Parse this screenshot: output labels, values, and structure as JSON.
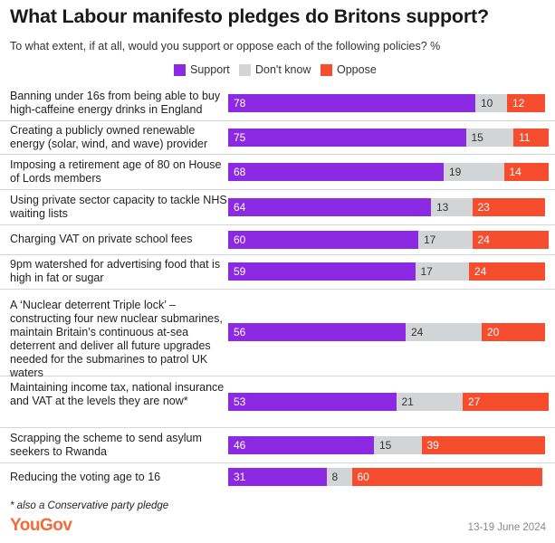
{
  "title": "What Labour manifesto pledges do Britons support?",
  "subtitle": "To what extent, if at all, would you support or oppose each of the following policies? %",
  "footnote": "* also a Conservative party pledge",
  "brand": "YouGov",
  "date": "13-19 June 2024",
  "colors": {
    "support": "#8b29e3",
    "dont_know": "#d3d4d6",
    "oppose": "#f54d2e"
  },
  "chart_data": {
    "type": "bar",
    "orientation": "horizontal",
    "stacked": true,
    "title": "What Labour manifesto pledges do Britons support?",
    "subtitle": "To what extent, if at all, would you support or oppose each of the following policies? %",
    "legend_position": "top-center",
    "categories": [
      "Banning under 16s from being able to buy high-caffeine energy drinks in England",
      "Creating a publicly owned renewable energy (solar, wind, and wave) provider",
      "Imposing a retirement age of 80 on House of Lords members",
      "Using private sector capacity to tackle NHS waiting lists",
      "Charging VAT on private school fees",
      "9pm watershed for advertising food that is high in fat or sugar",
      "A ‘Nuclear deterrent Triple lock’ – constructing four new nuclear submarines, maintain Britain’s continuous at-sea deterrent and deliver all future upgrades needed for the submarines to patrol UK waters",
      "Maintaining income tax, national insurance and VAT at the levels they are now*",
      "Scrapping the scheme to send asylum seekers to Rwanda",
      "Reducing the voting age to 16"
    ],
    "series": [
      {
        "name": "Support",
        "values": [
          78,
          75,
          68,
          64,
          60,
          59,
          56,
          53,
          46,
          31
        ]
      },
      {
        "name": "Don't know",
        "values": [
          10,
          15,
          19,
          13,
          17,
          17,
          24,
          21,
          15,
          8
        ]
      },
      {
        "name": "Oppose",
        "values": [
          12,
          11,
          14,
          23,
          24,
          24,
          20,
          27,
          39,
          60
        ]
      }
    ]
  }
}
